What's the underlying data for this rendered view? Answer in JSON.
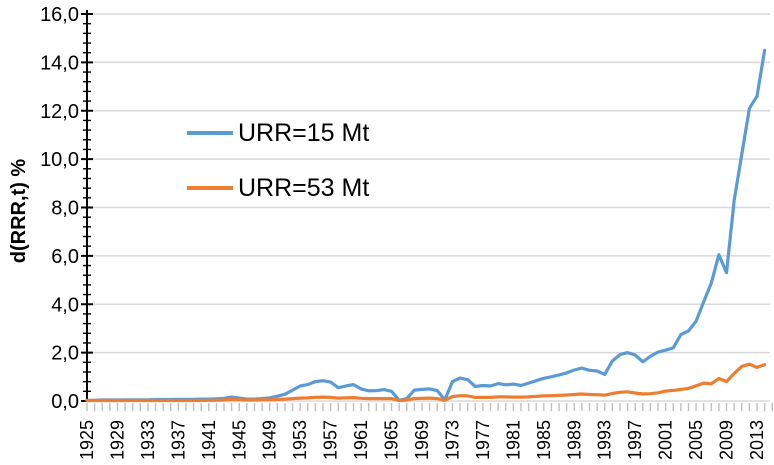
{
  "chart_data": {
    "type": "line",
    "title": "",
    "xlabel": "",
    "ylabel": "d(RRR,t) %",
    "x_start": 1925,
    "x_end": 2014,
    "x_step": 1,
    "x_tick_label_years": [
      1925,
      1929,
      1933,
      1937,
      1941,
      1945,
      1949,
      1953,
      1957,
      1961,
      1965,
      1969,
      1973,
      1977,
      1981,
      1985,
      1989,
      1993,
      1997,
      2001,
      2005,
      2009,
      2013
    ],
    "ylim": [
      0,
      16
    ],
    "y_major_step": 2,
    "y_minor_step": 0.4,
    "y_tick_labels": [
      "0,0",
      "2,0",
      "4,0",
      "6,0",
      "8,0",
      "10,0",
      "12,0",
      "14,0",
      "16,0"
    ],
    "decimal_separator": ",",
    "grid": "horizontal-major-only",
    "legend_position": "inside-upper-left",
    "colors": {
      "gridline": "#d9d9d9",
      "axis": "#000000",
      "x_tick": "#bfbfbf",
      "tick_text": "#000000"
    },
    "series": [
      {
        "name": "URR=15 Mt",
        "color": "#5b9bd5",
        "values": [
          0.03,
          0.03,
          0.04,
          0.04,
          0.04,
          0.05,
          0.05,
          0.05,
          0.05,
          0.06,
          0.06,
          0.06,
          0.07,
          0.07,
          0.07,
          0.08,
          0.08,
          0.09,
          0.11,
          0.16,
          0.12,
          0.08,
          0.08,
          0.1,
          0.13,
          0.2,
          0.28,
          0.45,
          0.62,
          0.68,
          0.8,
          0.84,
          0.78,
          0.55,
          0.62,
          0.68,
          0.5,
          0.42,
          0.43,
          0.47,
          0.4,
          0.03,
          0.1,
          0.45,
          0.48,
          0.5,
          0.43,
          0.05,
          0.8,
          0.95,
          0.88,
          0.6,
          0.64,
          0.62,
          0.72,
          0.67,
          0.7,
          0.64,
          0.74,
          0.84,
          0.94,
          1.0,
          1.08,
          1.16,
          1.28,
          1.36,
          1.27,
          1.24,
          1.1,
          1.65,
          1.92,
          2.0,
          1.9,
          1.62,
          1.85,
          2.02,
          2.1,
          2.2,
          2.75,
          2.9,
          3.3,
          4.1,
          4.88,
          6.05,
          5.3,
          8.3,
          10.2,
          12.1,
          12.6,
          14.5
        ]
      },
      {
        "name": "URR=53 Mt",
        "color": "#ed7d31",
        "values": [
          0.02,
          0.02,
          0.02,
          0.02,
          0.02,
          0.02,
          0.02,
          0.02,
          0.02,
          0.02,
          0.02,
          0.02,
          0.02,
          0.02,
          0.02,
          0.02,
          0.03,
          0.03,
          0.04,
          0.06,
          0.05,
          0.04,
          0.04,
          0.05,
          0.05,
          0.06,
          0.08,
          0.1,
          0.12,
          0.13,
          0.15,
          0.16,
          0.15,
          0.12,
          0.13,
          0.14,
          0.11,
          0.1,
          0.1,
          0.1,
          0.1,
          0.02,
          0.04,
          0.1,
          0.11,
          0.12,
          0.1,
          0.03,
          0.18,
          0.22,
          0.21,
          0.15,
          0.15,
          0.15,
          0.17,
          0.17,
          0.16,
          0.16,
          0.17,
          0.19,
          0.21,
          0.22,
          0.23,
          0.25,
          0.27,
          0.29,
          0.27,
          0.26,
          0.24,
          0.31,
          0.36,
          0.38,
          0.33,
          0.29,
          0.3,
          0.34,
          0.41,
          0.44,
          0.48,
          0.52,
          0.63,
          0.74,
          0.71,
          0.93,
          0.8,
          1.14,
          1.43,
          1.52,
          1.39,
          1.5
        ]
      }
    ]
  }
}
